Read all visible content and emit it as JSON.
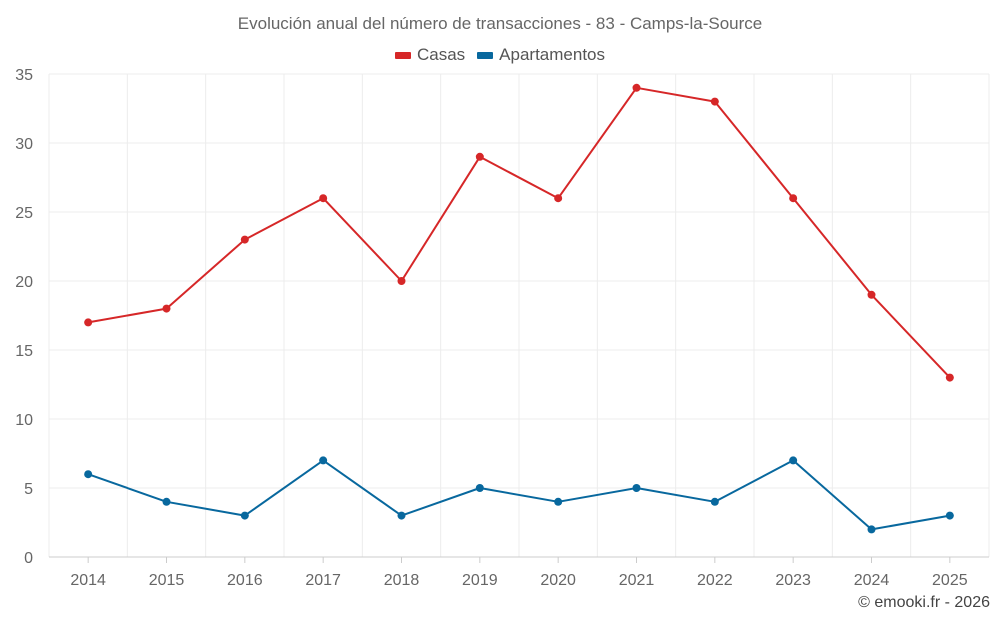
{
  "chart_data": {
    "type": "line",
    "title": "Evolución anual del número de transacciones - 83 - Camps-la-Source",
    "categories": [
      "2014",
      "2015",
      "2016",
      "2017",
      "2018",
      "2019",
      "2020",
      "2021",
      "2022",
      "2023",
      "2024",
      "2025"
    ],
    "series": [
      {
        "name": "Casas",
        "color": "#d62728",
        "values": [
          17,
          18,
          23,
          26,
          20,
          29,
          26,
          34,
          33,
          26,
          19,
          13
        ]
      },
      {
        "name": "Apartamentos",
        "color": "#08689e",
        "values": [
          6,
          4,
          3,
          7,
          3,
          5,
          4,
          5,
          4,
          7,
          2,
          3
        ]
      }
    ],
    "y_ticks": [
      0,
      5,
      10,
      15,
      20,
      25,
      30,
      35
    ],
    "ylim": [
      0,
      35
    ],
    "xlabel": "",
    "ylabel": "",
    "grid": true,
    "legend_position": "top-center"
  },
  "credit": "© emooki.fr - 2026"
}
